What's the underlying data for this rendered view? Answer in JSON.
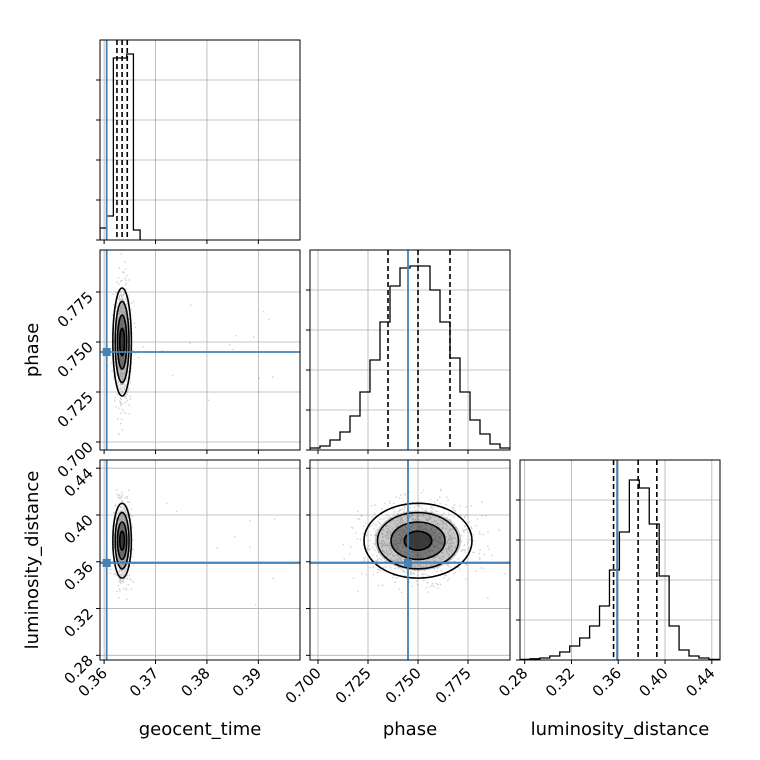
{
  "chart_data": {
    "type": "corner",
    "parameters": [
      "geocent_time",
      "phase",
      "luminosity_distance"
    ],
    "truths": {
      "geocent_time": 0.3605,
      "phase": 0.745,
      "luminosity_distance": 0.359
    },
    "quantiles": {
      "geocent_time": [
        0.3625,
        0.3635,
        0.3645
      ],
      "phase": [
        0.735,
        0.75,
        0.766
      ],
      "luminosity_distance": [
        0.356,
        0.377,
        0.393
      ]
    },
    "axis_ranges": {
      "geocent_time": [
        0.3592,
        0.3981
      ],
      "phase": [
        0.696,
        0.796
      ],
      "luminosity_distance": [
        0.276,
        0.447
      ]
    },
    "ticks": {
      "geocent_time": [
        0.36,
        0.37,
        0.38,
        0.39
      ],
      "geocent_time_labels": [
        "0.36",
        "0.37",
        "0.38",
        "0.39"
      ],
      "phase": [
        0.7,
        0.725,
        0.75,
        0.775
      ],
      "phase_labels": [
        "0.700",
        "0.725",
        "0.750",
        "0.775"
      ],
      "luminosity_distance": [
        0.28,
        0.32,
        0.36,
        0.4,
        0.44
      ],
      "luminosity_distance_labels": [
        "0.28",
        "0.32",
        "0.36",
        "0.40",
        "0.44"
      ]
    },
    "histograms": {
      "geocent_time": {
        "edges": [
          0.3592,
          0.3605,
          0.3618,
          0.3631,
          0.3644,
          0.3657,
          0.367
        ],
        "counts": [
          0.06,
          0.12,
          0.91,
          0.91,
          0.93,
          0.05
        ]
      },
      "phase": {
        "edges": [
          0.696,
          0.701,
          0.706,
          0.711,
          0.716,
          0.721,
          0.726,
          0.731,
          0.736,
          0.741,
          0.746,
          0.751,
          0.756,
          0.761,
          0.766,
          0.771,
          0.776,
          0.781,
          0.786,
          0.791,
          0.796
        ],
        "counts": [
          0.01,
          0.02,
          0.05,
          0.09,
          0.17,
          0.29,
          0.45,
          0.64,
          0.82,
          0.91,
          0.92,
          0.92,
          0.8,
          0.64,
          0.46,
          0.29,
          0.15,
          0.08,
          0.03,
          0.01
        ]
      },
      "luminosity_distance": {
        "edges": [
          0.276,
          0.2845,
          0.293,
          0.3015,
          0.31,
          0.3185,
          0.327,
          0.3355,
          0.344,
          0.3525,
          0.361,
          0.3695,
          0.378,
          0.3865,
          0.395,
          0.4035,
          0.412,
          0.4205,
          0.429,
          0.4375,
          0.446
        ],
        "counts": [
          0.003,
          0.006,
          0.01,
          0.02,
          0.04,
          0.07,
          0.11,
          0.17,
          0.27,
          0.45,
          0.64,
          0.9,
          0.86,
          0.68,
          0.42,
          0.17,
          0.05,
          0.02,
          0.01,
          0.003
        ]
      }
    },
    "grid": true
  }
}
